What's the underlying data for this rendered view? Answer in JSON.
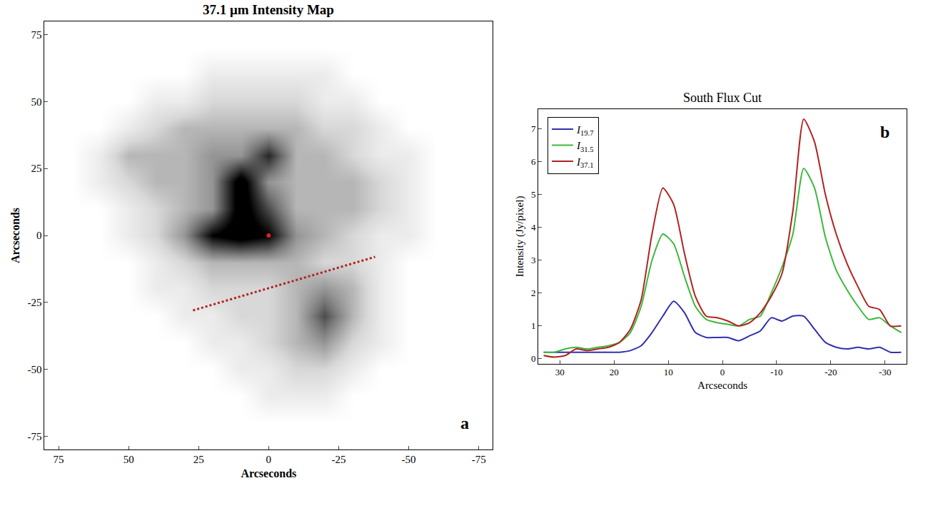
{
  "chart_data": [
    {
      "type": "heatmap",
      "title": "37.1 μm Intensity Map",
      "x_label": "Arcseconds",
      "y_label": "Arcseconds",
      "panel_label": "a",
      "x": [
        -80,
        -70,
        -60,
        -50,
        -40,
        -30,
        -20,
        -10,
        0,
        10,
        20,
        30,
        40,
        50,
        60,
        70,
        80
      ],
      "y": [
        -80,
        -70,
        -60,
        -50,
        -40,
        -30,
        -20,
        -10,
        0,
        10,
        20,
        30,
        40,
        50,
        60,
        70,
        80
      ],
      "z": [
        [
          0,
          0,
          0,
          0,
          0,
          0,
          0,
          0,
          0,
          0,
          0,
          0,
          0,
          0,
          0,
          0,
          0
        ],
        [
          0,
          0,
          0,
          0,
          0,
          0,
          0,
          0,
          0,
          0,
          0,
          0,
          0,
          0,
          0,
          0,
          0
        ],
        [
          0,
          0,
          0,
          0,
          0,
          0,
          1,
          1,
          1,
          0,
          0,
          0,
          0,
          0,
          0,
          0,
          0
        ],
        [
          0,
          0,
          0,
          0,
          0,
          1,
          2,
          2,
          1,
          1,
          0,
          0,
          0,
          0,
          0,
          0,
          0
        ],
        [
          0,
          0,
          0,
          0,
          1,
          2,
          4,
          3,
          2,
          1,
          1,
          0,
          0,
          0,
          0,
          0,
          0
        ],
        [
          0,
          0,
          0,
          0,
          1,
          3,
          6,
          3,
          2,
          2,
          1,
          1,
          0,
          0,
          0,
          0,
          0
        ],
        [
          0,
          0,
          0,
          0,
          1,
          3,
          4,
          3,
          2,
          2,
          2,
          1,
          1,
          0,
          0,
          0,
          0
        ],
        [
          0,
          0,
          0,
          0,
          1,
          2,
          2,
          3,
          3,
          3,
          3,
          2,
          1,
          0,
          0,
          0,
          0
        ],
        [
          0,
          0,
          0,
          1,
          1,
          2,
          3,
          4,
          8,
          9,
          8,
          4,
          2,
          1,
          0,
          0,
          0
        ],
        [
          0,
          0,
          0,
          1,
          2,
          3,
          3,
          3,
          6,
          9,
          4,
          3,
          2,
          1,
          0,
          0,
          0
        ],
        [
          0,
          0,
          0,
          1,
          2,
          3,
          3,
          3,
          4,
          9,
          4,
          3,
          3,
          2,
          1,
          0,
          0
        ],
        [
          0,
          0,
          0,
          1,
          1,
          2,
          3,
          3,
          7,
          4,
          4,
          3,
          3,
          3,
          1,
          0,
          0
        ],
        [
          0,
          0,
          0,
          0,
          1,
          2,
          2,
          3,
          3,
          3,
          3,
          3,
          2,
          1,
          0,
          0,
          0
        ],
        [
          0,
          0,
          0,
          0,
          0,
          1,
          1,
          2,
          2,
          2,
          2,
          1,
          1,
          0,
          0,
          0,
          0
        ],
        [
          0,
          0,
          0,
          0,
          0,
          0,
          1,
          1,
          1,
          1,
          1,
          0,
          0,
          0,
          0,
          0,
          0
        ],
        [
          0,
          0,
          0,
          0,
          0,
          0,
          0,
          0,
          0,
          0,
          0,
          0,
          0,
          0,
          0,
          0,
          0
        ],
        [
          0,
          0,
          0,
          0,
          0,
          0,
          0,
          0,
          0,
          0,
          0,
          0,
          0,
          0,
          0,
          0,
          0
        ]
      ],
      "zlim": [
        0,
        8
      ],
      "xlim": [
        80,
        -80
      ],
      "ylim": [
        -80,
        80
      ],
      "xticks": [
        75,
        50,
        25,
        0,
        -25,
        -50,
        -75
      ],
      "yticks": [
        -75,
        -50,
        -25,
        0,
        25,
        50,
        75
      ],
      "lines": [
        {
          "x": [
            27,
            -38
          ],
          "y": [
            -28,
            -8
          ],
          "color": "#b22222",
          "line_style": "dot"
        }
      ],
      "points": [
        {
          "x": [
            0
          ],
          "y": [
            0
          ],
          "color": "#e02020"
        }
      ]
    },
    {
      "type": "line",
      "title": "South Flux Cut",
      "x_label": "Arcseconds",
      "y_label": "Intensity (Jy/pixel)",
      "panel_label": "b",
      "legend": "upper left",
      "x": [
        33,
        31,
        29,
        27,
        25,
        23,
        21,
        19,
        17,
        15,
        13,
        11,
        9,
        7,
        5,
        3,
        1,
        -1,
        -3,
        -5,
        -7,
        -9,
        -11,
        -13,
        -15,
        -17,
        -19,
        -21,
        -23,
        -25,
        -27,
        -29,
        -31,
        -33
      ],
      "series": [
        {
          "name": "I19.7",
          "color": "#3030b0",
          "values": [
            0.2,
            0.2,
            0.2,
            0.2,
            0.2,
            0.2,
            0.2,
            0.2,
            0.25,
            0.4,
            0.8,
            1.3,
            1.75,
            1.4,
            0.8,
            0.65,
            0.65,
            0.65,
            0.55,
            0.7,
            0.85,
            1.25,
            1.15,
            1.3,
            1.3,
            0.9,
            0.5,
            0.35,
            0.3,
            0.35,
            0.3,
            0.35,
            0.2,
            0.2
          ]
        },
        {
          "name": "I31.5",
          "color": "#3cb83c",
          "values": [
            0.2,
            0.2,
            0.3,
            0.35,
            0.3,
            0.35,
            0.4,
            0.5,
            0.8,
            1.6,
            3.0,
            3.8,
            3.5,
            2.5,
            1.6,
            1.2,
            1.1,
            1.05,
            1.0,
            1.2,
            1.3,
            2.0,
            2.8,
            3.8,
            5.8,
            5.2,
            3.7,
            2.7,
            2.1,
            1.6,
            1.2,
            1.25,
            1.0,
            0.8
          ]
        },
        {
          "name": "I37.1",
          "color": "#b22222",
          "values": [
            0.1,
            0.05,
            0.1,
            0.3,
            0.25,
            0.3,
            0.35,
            0.5,
            0.9,
            1.8,
            3.8,
            5.2,
            4.7,
            3.2,
            1.9,
            1.3,
            1.25,
            1.15,
            1.0,
            1.1,
            1.4,
            1.9,
            2.6,
            4.5,
            7.3,
            6.6,
            5.0,
            3.8,
            2.9,
            2.2,
            1.6,
            1.5,
            1.0,
            1.0
          ]
        }
      ],
      "xlim": [
        34,
        -34
      ],
      "ylim": [
        -0.15,
        7.6
      ],
      "xticks": [
        30,
        20,
        10,
        0,
        -10,
        -20,
        -30
      ],
      "yticks": [
        0,
        1,
        2,
        3,
        4,
        5,
        6,
        7
      ]
    }
  ]
}
